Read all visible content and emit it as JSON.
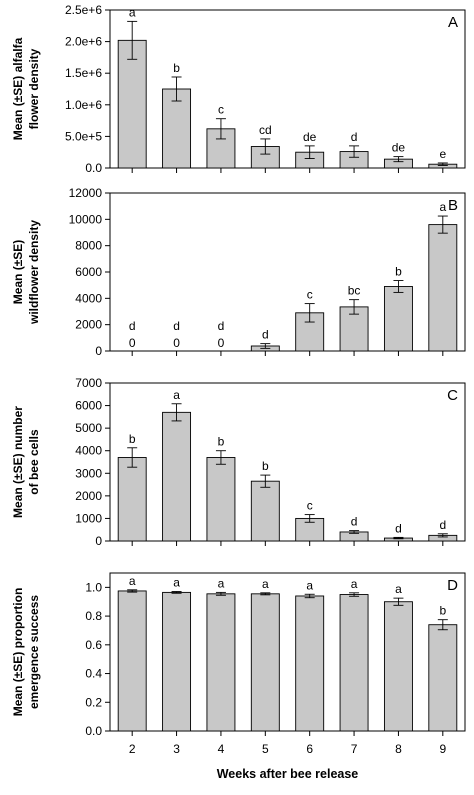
{
  "chart_data": [
    {
      "type": "bar",
      "panel_letter": "A",
      "ylabel_lines": [
        "Mean (±SE) alfalfa",
        "flower density"
      ],
      "ylim": [
        0,
        2500000
      ],
      "yticks": [
        0,
        500000,
        1000000,
        1500000,
        2000000,
        2500000
      ],
      "ytick_labels": [
        "0.0",
        "5.0e+5",
        "1.0e+6",
        "1.5e+6",
        "2.0e+6",
        "2.5e+6"
      ],
      "categories": [
        "2",
        "3",
        "4",
        "5",
        "6",
        "7",
        "8",
        "9"
      ],
      "values": [
        2020000,
        1250000,
        620000,
        340000,
        250000,
        260000,
        140000,
        60000
      ],
      "errors": [
        300000,
        190000,
        160000,
        120000,
        100000,
        90000,
        40000,
        20000
      ],
      "letters": [
        "a",
        "b",
        "c",
        "cd",
        "de",
        "d",
        "de",
        "e"
      ],
      "zero_labels": [
        "",
        "",
        "",
        "",
        "",
        "",
        "",
        ""
      ],
      "show_xtick_labels": false
    },
    {
      "type": "bar",
      "panel_letter": "B",
      "ylabel_lines": [
        "Mean (±SE)",
        "wildflower density"
      ],
      "ylim": [
        0,
        12000
      ],
      "yticks": [
        0,
        2000,
        4000,
        6000,
        8000,
        10000,
        12000
      ],
      "ytick_labels": [
        "0",
        "2000",
        "4000",
        "6000",
        "8000",
        "10000",
        "12000"
      ],
      "categories": [
        "2",
        "3",
        "4",
        "5",
        "6",
        "7",
        "8",
        "9"
      ],
      "values": [
        0,
        0,
        0,
        380,
        2900,
        3350,
        4900,
        9600
      ],
      "errors": [
        0,
        0,
        0,
        180,
        700,
        550,
        450,
        650
      ],
      "letters": [
        "d",
        "d",
        "d",
        "d",
        "c",
        "bc",
        "b",
        "a"
      ],
      "zero_labels": [
        "0",
        "0",
        "0",
        "",
        "",
        "",
        "",
        ""
      ],
      "show_xtick_labels": false
    },
    {
      "type": "bar",
      "panel_letter": "C",
      "ylabel_lines": [
        "Mean (±SE) number",
        "of bee cells"
      ],
      "ylim": [
        0,
        7000
      ],
      "yticks": [
        0,
        1000,
        2000,
        3000,
        4000,
        5000,
        6000,
        7000
      ],
      "ytick_labels": [
        "0",
        "1000",
        "2000",
        "3000",
        "4000",
        "5000",
        "6000",
        "7000"
      ],
      "categories": [
        "2",
        "3",
        "4",
        "5",
        "6",
        "7",
        "8",
        "9"
      ],
      "values": [
        3700,
        5700,
        3700,
        2650,
        1000,
        400,
        130,
        250
      ],
      "errors": [
        430,
        380,
        300,
        270,
        170,
        60,
        30,
        70
      ],
      "letters": [
        "b",
        "a",
        "b",
        "b",
        "c",
        "d",
        "d",
        "d"
      ],
      "zero_labels": [
        "",
        "",
        "",
        "",
        "",
        "",
        "",
        ""
      ],
      "show_xtick_labels": false
    },
    {
      "type": "bar",
      "panel_letter": "D",
      "ylabel_lines": [
        "Mean (±SE) proportion",
        "emergence success"
      ],
      "ylim": [
        0,
        1.1
      ],
      "yticks": [
        0,
        0.2,
        0.4,
        0.6,
        0.8,
        1.0
      ],
      "ytick_labels": [
        "0.0",
        "0.2",
        "0.4",
        "0.6",
        "0.8",
        "1.0"
      ],
      "categories": [
        "2",
        "3",
        "4",
        "5",
        "6",
        "7",
        "8",
        "9"
      ],
      "values": [
        0.975,
        0.965,
        0.955,
        0.955,
        0.94,
        0.95,
        0.9,
        0.74
      ],
      "errors": [
        0.008,
        0.006,
        0.01,
        0.007,
        0.012,
        0.012,
        0.025,
        0.035
      ],
      "letters": [
        "a",
        "a",
        "a",
        "a",
        "a",
        "a",
        "a",
        "b"
      ],
      "zero_labels": [
        "",
        "",
        "",
        "",
        "",
        "",
        "",
        ""
      ],
      "show_xtick_labels": true
    }
  ],
  "xlabel": "Weeks after bee release"
}
